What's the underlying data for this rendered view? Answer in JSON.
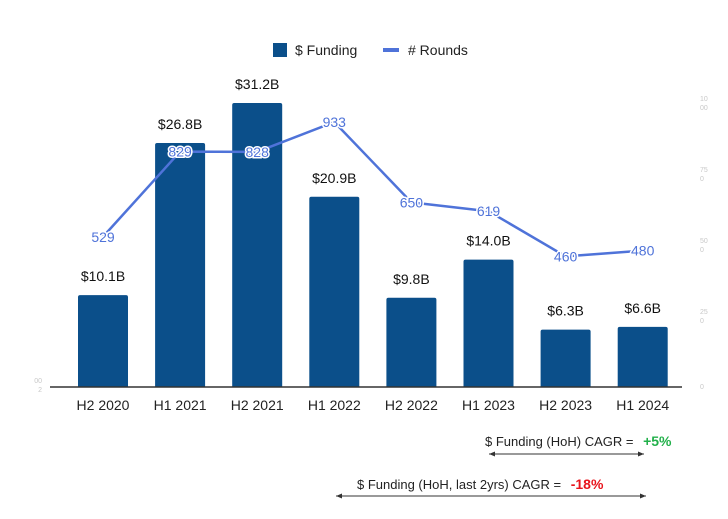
{
  "chart_data": {
    "type": "bar",
    "title": "",
    "xlabel": "",
    "ylabel": "",
    "categories": [
      "H2 2020",
      "H1 2021",
      "H2 2021",
      "H1 2022",
      "H2 2022",
      "H1 2023",
      "H2 2023",
      "H1 2024"
    ],
    "series": [
      {
        "name": "$ Funding",
        "type": "bar",
        "axis": "left",
        "values": [
          10.1,
          26.8,
          31.2,
          20.9,
          9.8,
          14.0,
          6.3,
          6.6
        ],
        "labels": [
          "$10.1B",
          "$26.8B",
          "$31.2B",
          "$20.9B",
          "$9.8B",
          "$14.0B",
          "$6.3B",
          "$6.6B"
        ],
        "color": "#0b4f8a"
      },
      {
        "name": "# Rounds",
        "type": "line",
        "axis": "right",
        "values": [
          529,
          829,
          828,
          933,
          650,
          619,
          460,
          480
        ],
        "labels": [
          "529",
          "829",
          "828",
          "933",
          "650",
          "619",
          "460",
          "480"
        ],
        "color": "#4f73d9"
      }
    ],
    "left_axis": {
      "ylim": [
        0,
        31.2
      ],
      "tick_labels": [
        "00\n2"
      ]
    },
    "right_axis": {
      "ylim": [
        0,
        1000
      ],
      "tick_labels": [
        "0",
        "25\n0",
        "50\n0",
        "75\n0",
        "10\n00"
      ]
    },
    "legend": {
      "position": "top-center",
      "entries": [
        "$ Funding",
        "# Rounds"
      ]
    },
    "grid": false
  },
  "annotations": {
    "cagr_hoh": {
      "label": "$ Funding (HoH) CAGR = ",
      "value": "+5%",
      "color": "#22b04a"
    },
    "cagr_2yrs": {
      "label": "$ Funding (HoH, last 2yrs) CAGR = ",
      "value": "-18%",
      "color": "#e8141c"
    }
  }
}
